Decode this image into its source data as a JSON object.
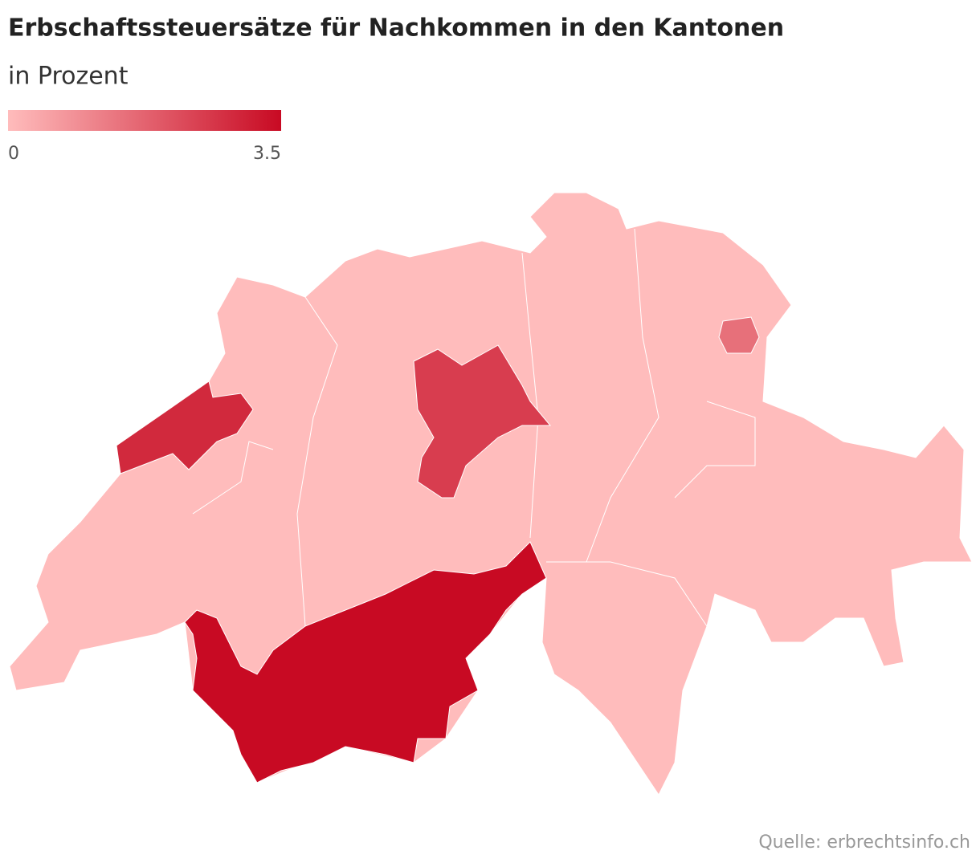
{
  "chart_data": {
    "type": "choropleth",
    "title": "Erbschaftssteuersätze für Nachkommen in den Kantonen",
    "subtitle": "in Prozent",
    "legend": {
      "min": 0,
      "max": 3.5,
      "colors": [
        "#ffbcbc",
        "#c80a23"
      ]
    },
    "regions": [
      {
        "value": 0
      },
      {
        "value": 3.5
      },
      {
        "value": 2.9
      },
      {
        "value": 2.5
      },
      {
        "value": 1.5
      }
    ],
    "source": "Quelle: erbrechtsinfo.ch"
  }
}
